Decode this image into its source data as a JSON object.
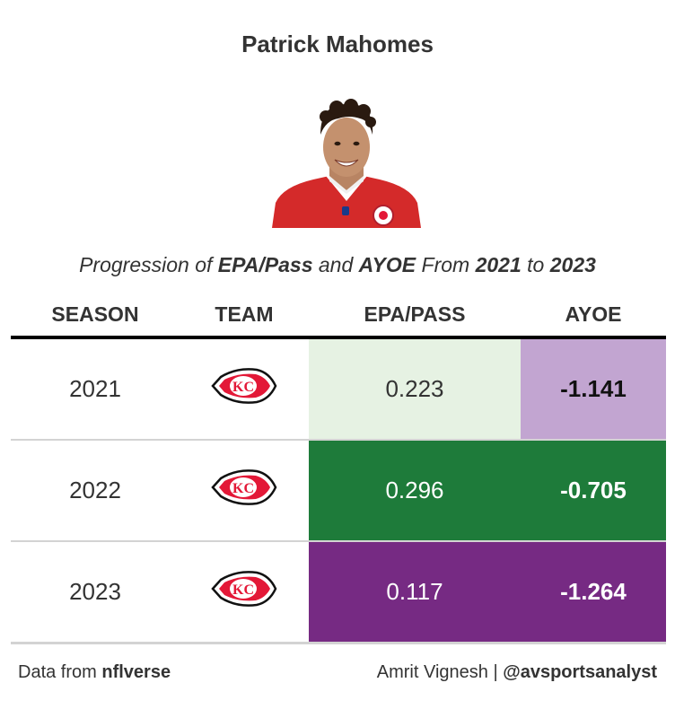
{
  "title": "Patrick Mahomes",
  "subtitle": {
    "prefix": "Progression of ",
    "metric1": "EPA/Pass",
    "mid": " and ",
    "metric2": "AYOE",
    "from": " From ",
    "start_year": "2021",
    "to": " to ",
    "end_year": "2023"
  },
  "table": {
    "headers": [
      "SEASON",
      "TEAM",
      "EPA/PASS",
      "AYOE"
    ],
    "rows": [
      {
        "season": "2021",
        "team_icon": "chiefs-logo-icon",
        "epa": "0.223",
        "ayoe": "-1.141",
        "epa_color": "#e6f2e3",
        "ayoe_color": "#c2a5d1"
      },
      {
        "season": "2022",
        "team_icon": "chiefs-logo-icon",
        "epa": "0.296",
        "ayoe": "-0.705",
        "epa_color": "#1e7b3a",
        "ayoe_color": "#1e7b3a"
      },
      {
        "season": "2023",
        "team_icon": "chiefs-logo-icon",
        "epa": "0.117",
        "ayoe": "-1.264",
        "epa_color": "#762a83",
        "ayoe_color": "#762a83"
      }
    ]
  },
  "footer": {
    "left_prefix": "Data from ",
    "left_source": "nflverse",
    "right_author": "Amrit Vignesh | ",
    "right_handle": "@avsportsanalyst"
  },
  "colors": {
    "chiefs_red": "#e31837",
    "chiefs_gold": "#ffb81c"
  }
}
